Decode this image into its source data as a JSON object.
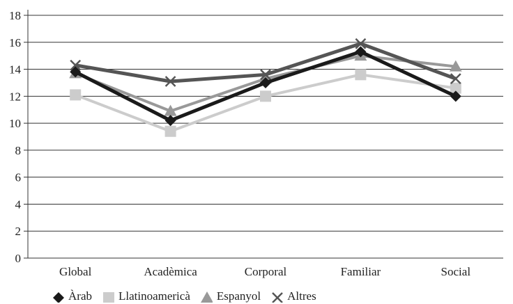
{
  "chart_data": {
    "type": "line",
    "categories": [
      "Global",
      "Acadèmica",
      "Corporal",
      "Familiar",
      "Social"
    ],
    "series": [
      {
        "name": "Àrab",
        "values": [
          13.8,
          10.2,
          13.0,
          15.3,
          12.0
        ],
        "color": "#1a1a1a",
        "marker": "diamond"
      },
      {
        "name": "Llatinoamericà",
        "values": [
          12.1,
          9.4,
          12.0,
          13.6,
          12.6
        ],
        "color": "#cccccc",
        "marker": "square"
      },
      {
        "name": "Espanyol",
        "values": [
          13.7,
          10.9,
          13.3,
          15.0,
          14.2
        ],
        "color": "#999999",
        "marker": "triangle"
      },
      {
        "name": "Altres",
        "values": [
          14.3,
          13.1,
          13.6,
          15.9,
          13.3
        ],
        "color": "#555555",
        "marker": "x"
      }
    ],
    "ylim": [
      0,
      18
    ],
    "yticks": [
      0,
      2,
      4,
      6,
      8,
      10,
      12,
      14,
      16,
      18
    ],
    "grid": true,
    "legend_position": "bottom"
  }
}
